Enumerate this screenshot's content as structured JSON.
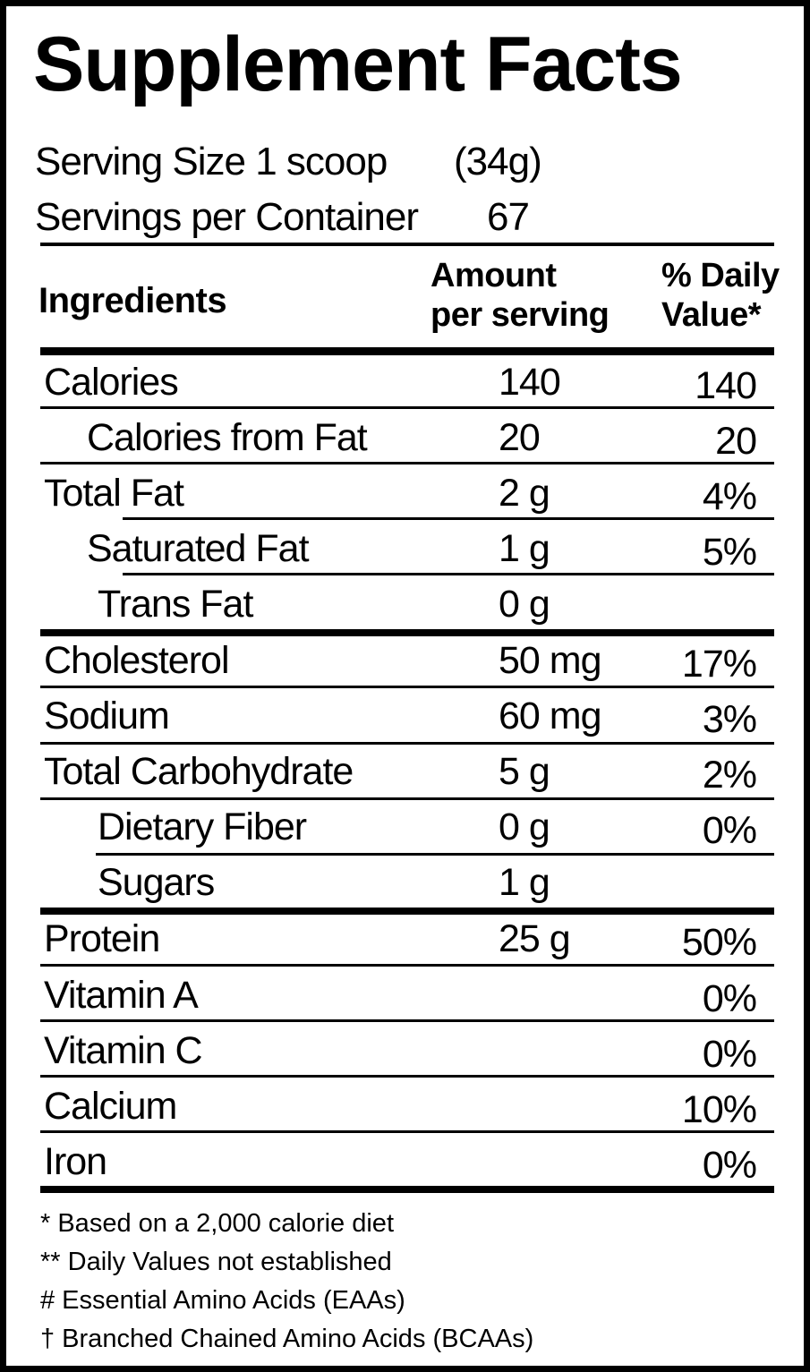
{
  "title": "Supplement Facts",
  "serving_size": {
    "label": "Serving Size 1 scoop",
    "value": "(34g)"
  },
  "servings_per_container": {
    "label": "Servings per Container",
    "value": "67"
  },
  "headers": {
    "ingredients": "Ingredients",
    "amount_line1": "Amount",
    "amount_line2": "per serving",
    "dv_line1": "% Daily",
    "dv_line2": "Value*"
  },
  "rows": [
    {
      "name": "Calories",
      "amount": "140",
      "dv": "140"
    },
    {
      "name": "Calories from Fat",
      "amount": "20",
      "dv": "20"
    },
    {
      "name": "Total Fat",
      "amount": "2 g",
      "dv": "4%"
    },
    {
      "name": "Saturated Fat",
      "amount": "1 g",
      "dv": "5%"
    },
    {
      "name": "Trans Fat",
      "amount": "0 g",
      "dv": ""
    },
    {
      "name": "Cholesterol",
      "amount": "50 mg",
      "dv": "17%"
    },
    {
      "name": "Sodium",
      "amount": "60 mg",
      "dv": "3%"
    },
    {
      "name": "Total Carbohydrate",
      "amount": "5 g",
      "dv": "2%"
    },
    {
      "name": "Dietary Fiber",
      "amount": "0 g",
      "dv": "0%"
    },
    {
      "name": "Sugars",
      "amount": "1 g",
      "dv": ""
    },
    {
      "name": "Protein",
      "amount": "25 g",
      "dv": "50%"
    },
    {
      "name": "Vitamin A",
      "amount": "",
      "dv": "0%"
    },
    {
      "name": "Vitamin C",
      "amount": "",
      "dv": "0%"
    },
    {
      "name": "Calcium",
      "amount": "",
      "dv": "10%"
    },
    {
      "name": "Iron",
      "amount": "",
      "dv": "0%"
    }
  ],
  "footnotes": [
    "* Based on a 2,000 calorie diet",
    "** Daily Values not established",
    "# Essential Amino Acids (EAAs)",
    "† Branched Chained Amino Acids (BCAAs)"
  ]
}
